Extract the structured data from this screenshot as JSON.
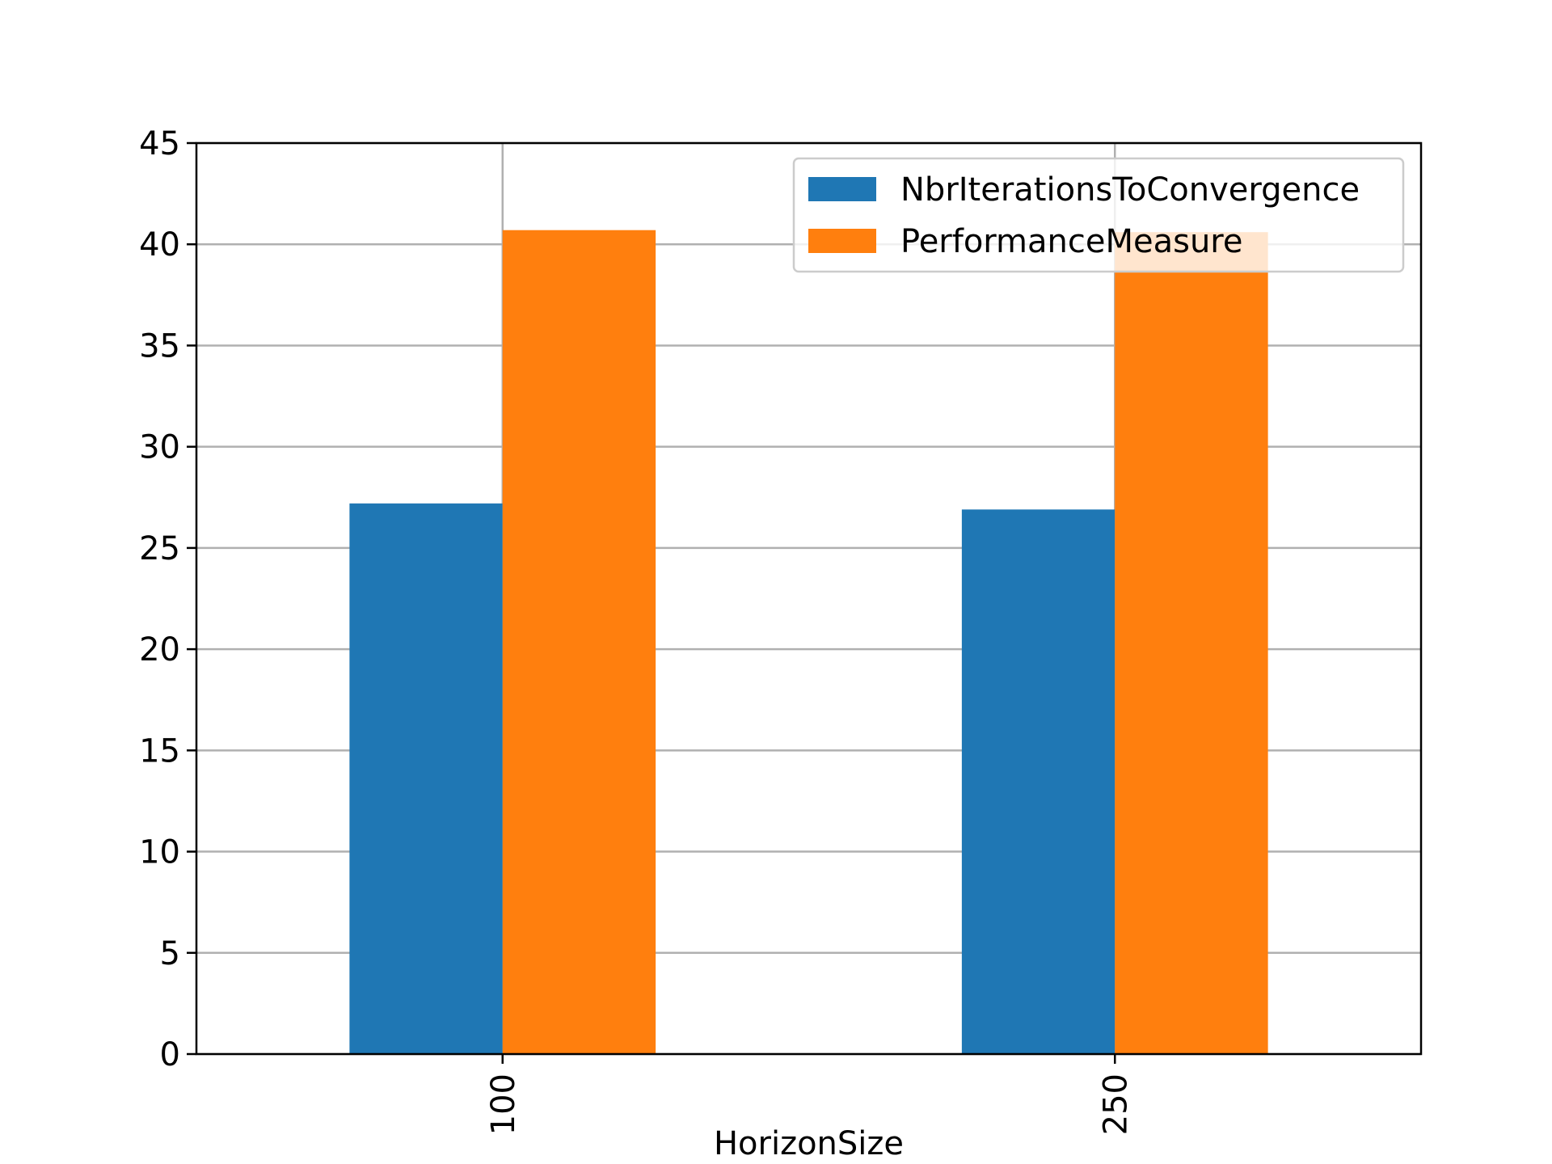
{
  "chart_data": {
    "type": "bar",
    "title": "",
    "xlabel": "HorizonSize",
    "ylabel": "",
    "categories": [
      "100",
      "250"
    ],
    "series": [
      {
        "name": "NbrIterationsToConvergence",
        "values": [
          27.2,
          26.9
        ]
      },
      {
        "name": "PerformanceMeasure",
        "values": [
          40.7,
          40.6
        ]
      }
    ],
    "ylim": [
      0,
      45
    ],
    "yticks": [
      0,
      5,
      10,
      15,
      20,
      25,
      30,
      35,
      40,
      45
    ],
    "grid": true,
    "legend_position": "top-right",
    "xtick_rotation": "vertical"
  },
  "colors": {
    "NbrIterationsToConvergence": "#1f77b4",
    "PerformanceMeasure": "#ff7f0e",
    "grid": "#b0b0b0",
    "axis": "#000000"
  }
}
